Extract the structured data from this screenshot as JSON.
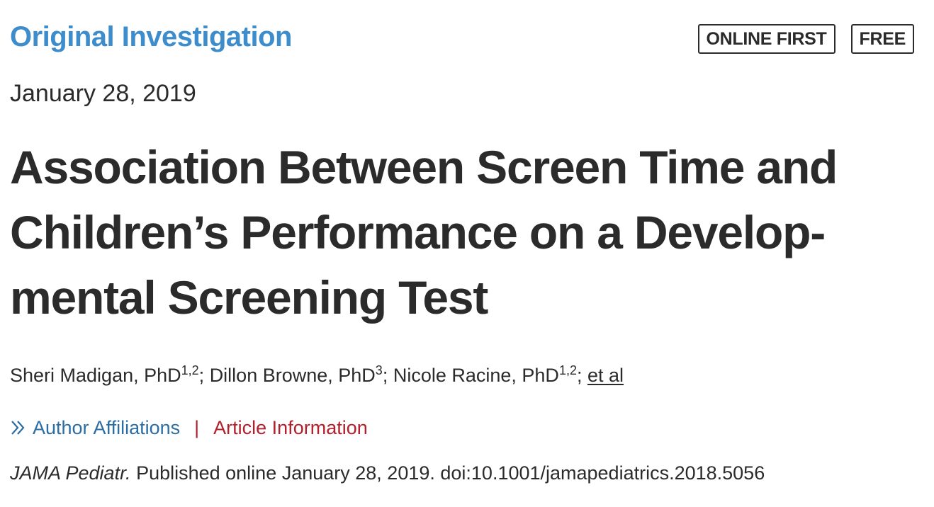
{
  "header": {
    "section_label": "Original Investigation",
    "badges": [
      "ONLINE FIRST",
      "FREE"
    ]
  },
  "article": {
    "date": "January 28, 2019",
    "title_lines": [
      "Association Between Screen Time and",
      "Children’s Performance on a Develop-",
      "mental Screening Test"
    ],
    "authors": [
      {
        "name": "Sheri Madigan, PhD",
        "affil": "1,2",
        "sep": "; "
      },
      {
        "name": "Dillon Browne, PhD",
        "affil": "3",
        "sep": "; "
      },
      {
        "name": "Nicole Racine, PhD",
        "affil": "1,2",
        "sep": "; "
      }
    ],
    "et_al": "et al",
    "links": {
      "affiliations": "Author Affiliations",
      "divider": "|",
      "article_information": "Article Information"
    },
    "citation": {
      "journal": "JAMA Pediatr.",
      "rest": " Published online January 28, 2019. doi:10.1001/jamapediatrics.2018.5056"
    }
  },
  "colors": {
    "section_label": "#3d8dcc",
    "affiliations_link": "#2c6ea3",
    "article_info_link": "#b3202b",
    "text": "#2b2b2b"
  },
  "icons": {
    "affiliations_toggle": "double-chevron-right-icon"
  }
}
